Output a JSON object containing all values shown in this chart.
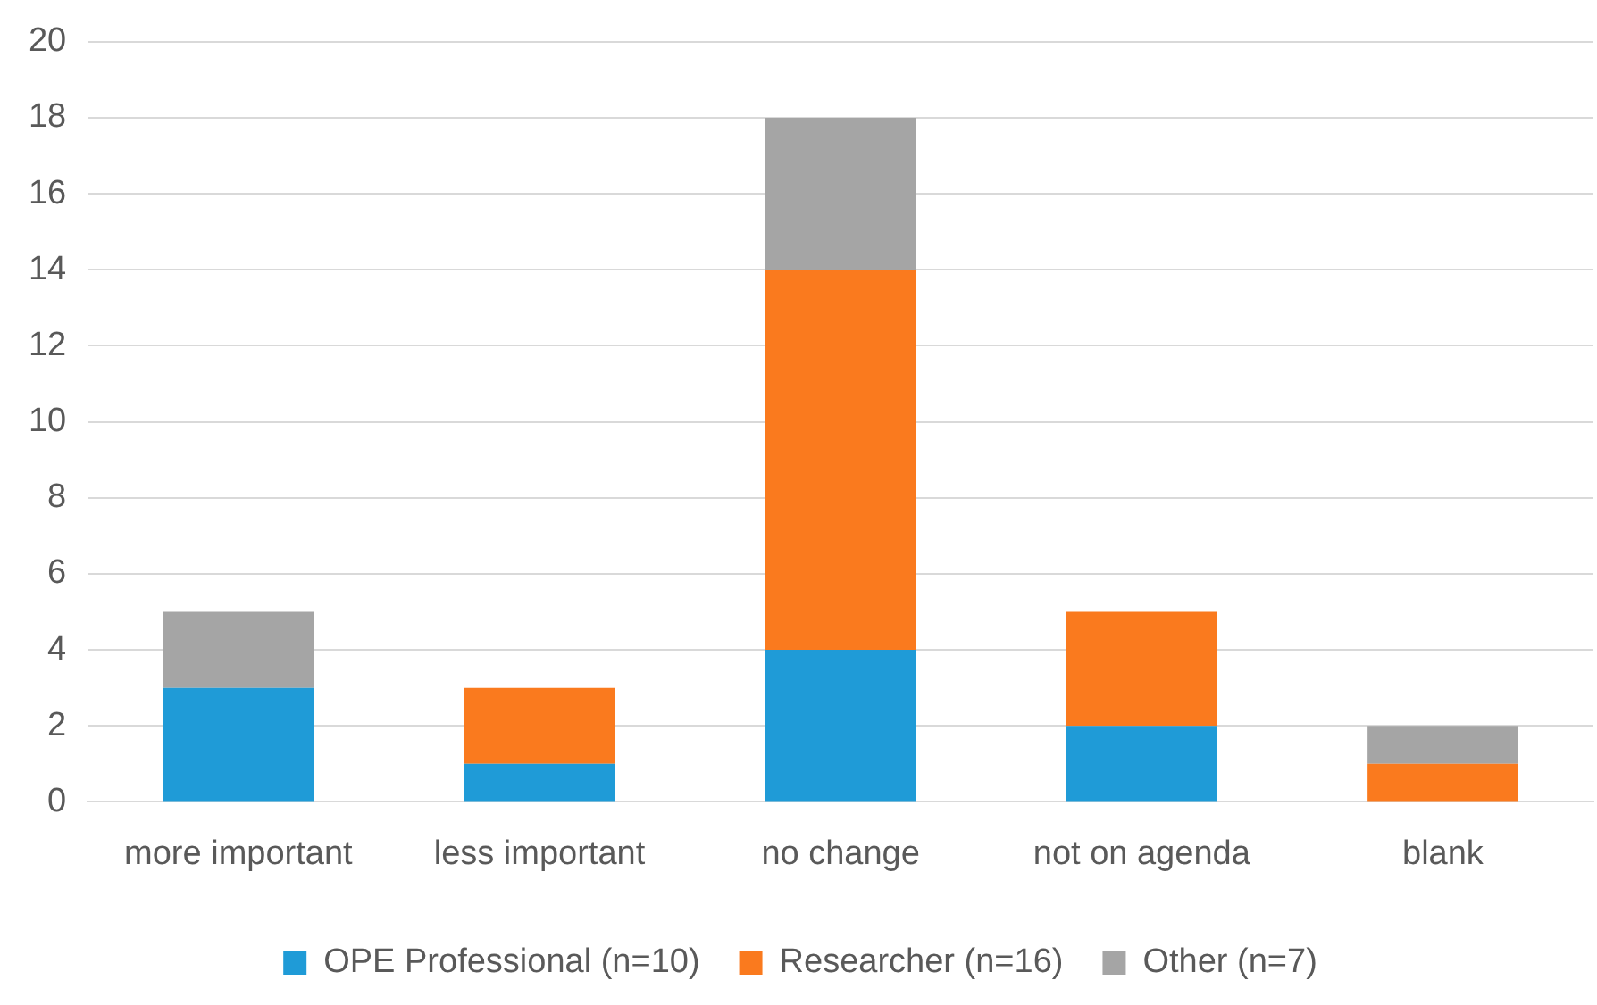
{
  "chart_data": {
    "type": "bar",
    "stacked": true,
    "categories": [
      "more important",
      "less important",
      "no change",
      "not on agenda",
      "blank"
    ],
    "series": [
      {
        "name": "OPE Professional (n=10)",
        "color": "#1f9bd7",
        "values": [
          3,
          1,
          4,
          2,
          0
        ]
      },
      {
        "name": "Researcher (n=16)",
        "color": "#fa7a1e",
        "values": [
          0,
          2,
          10,
          3,
          1
        ]
      },
      {
        "name": "Other (n=7)",
        "color": "#a5a5a5",
        "values": [
          2,
          0,
          4,
          0,
          1
        ]
      }
    ],
    "ylim": [
      0,
      20
    ],
    "yticks": [
      0,
      2,
      4,
      6,
      8,
      10,
      12,
      14,
      16,
      18,
      20
    ],
    "grid": "y",
    "legend": "bottom"
  }
}
